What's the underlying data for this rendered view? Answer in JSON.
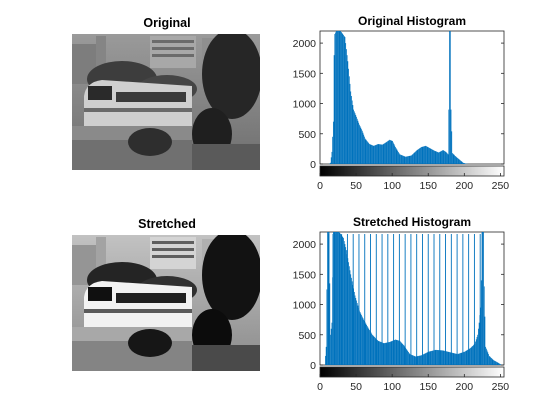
{
  "panels": {
    "original_title": "Original",
    "stretched_title": "Stretched"
  },
  "chart_data": [
    {
      "type": "bar",
      "title": "Original Histogram",
      "xlabel": "",
      "ylabel": "",
      "xlim": [
        0,
        255
      ],
      "ylim": [
        0,
        2200
      ],
      "x_ticks": [
        0,
        50,
        100,
        150,
        200,
        250
      ],
      "y_ticks": [
        0,
        500,
        1000,
        1500,
        2000
      ],
      "bar_color": "#0072BD",
      "colorbar": "grayscale 0-255",
      "profile": [
        [
          0,
          0
        ],
        [
          12,
          0
        ],
        [
          14,
          20
        ],
        [
          16,
          200
        ],
        [
          18,
          700
        ],
        [
          19,
          1800
        ],
        [
          20,
          2150
        ],
        [
          22,
          2200
        ],
        [
          28,
          2200
        ],
        [
          34,
          2100
        ],
        [
          38,
          1700
        ],
        [
          42,
          1200
        ],
        [
          46,
          900
        ],
        [
          50,
          780
        ],
        [
          54,
          650
        ],
        [
          58,
          550
        ],
        [
          62,
          420
        ],
        [
          68,
          330
        ],
        [
          74,
          300
        ],
        [
          80,
          330
        ],
        [
          86,
          320
        ],
        [
          90,
          350
        ],
        [
          96,
          400
        ],
        [
          100,
          380
        ],
        [
          104,
          280
        ],
        [
          110,
          160
        ],
        [
          118,
          120
        ],
        [
          126,
          140
        ],
        [
          134,
          230
        ],
        [
          140,
          280
        ],
        [
          146,
          300
        ],
        [
          152,
          260
        ],
        [
          158,
          220
        ],
        [
          164,
          190
        ],
        [
          170,
          230
        ],
        [
          174,
          200
        ],
        [
          177,
          160
        ],
        [
          178,
          900
        ],
        [
          179,
          2200
        ],
        [
          180,
          2200
        ],
        [
          181,
          900
        ],
        [
          183,
          180
        ],
        [
          188,
          120
        ],
        [
          194,
          60
        ],
        [
          198,
          20
        ],
        [
          202,
          5
        ],
        [
          206,
          0
        ],
        [
          255,
          0
        ]
      ]
    },
    {
      "type": "bar",
      "title": "Stretched Histogram",
      "xlabel": "",
      "ylabel": "",
      "xlim": [
        0,
        255
      ],
      "ylim": [
        0,
        2200
      ],
      "x_ticks": [
        0,
        50,
        100,
        150,
        200,
        250
      ],
      "y_ticks": [
        0,
        500,
        1000,
        1500,
        2000
      ],
      "bar_color": "#0072BD",
      "colorbar": "grayscale 0-255",
      "profile": [
        [
          0,
          0
        ],
        [
          6,
          0
        ],
        [
          8,
          300
        ],
        [
          10,
          2200
        ],
        [
          12,
          2200
        ],
        [
          14,
          500
        ],
        [
          16,
          700
        ],
        [
          18,
          2200
        ],
        [
          20,
          2200
        ],
        [
          26,
          2200
        ],
        [
          32,
          2100
        ],
        [
          36,
          1900
        ],
        [
          42,
          1500
        ],
        [
          48,
          1150
        ],
        [
          54,
          900
        ],
        [
          60,
          750
        ],
        [
          66,
          620
        ],
        [
          72,
          500
        ],
        [
          80,
          400
        ],
        [
          88,
          360
        ],
        [
          96,
          380
        ],
        [
          104,
          420
        ],
        [
          110,
          400
        ],
        [
          116,
          320
        ],
        [
          124,
          180
        ],
        [
          132,
          140
        ],
        [
          140,
          160
        ],
        [
          150,
          220
        ],
        [
          160,
          250
        ],
        [
          170,
          240
        ],
        [
          180,
          210
        ],
        [
          190,
          180
        ],
        [
          200,
          220
        ],
        [
          208,
          280
        ],
        [
          214,
          350
        ],
        [
          218,
          500
        ],
        [
          220,
          700
        ],
        [
          222,
          950
        ],
        [
          223,
          1400
        ],
        [
          224,
          2200
        ],
        [
          226,
          2200
        ],
        [
          227,
          1300
        ],
        [
          229,
          300
        ],
        [
          234,
          150
        ],
        [
          240,
          80
        ],
        [
          246,
          40
        ],
        [
          250,
          10
        ],
        [
          255,
          0
        ]
      ],
      "outline_spikes": [
        12,
        18,
        22,
        30,
        38,
        46,
        54,
        62,
        70,
        78,
        86,
        94,
        102,
        110,
        118,
        126,
        134,
        142,
        150,
        158,
        166,
        174,
        182,
        190,
        198,
        206,
        214,
        222
      ]
    }
  ]
}
